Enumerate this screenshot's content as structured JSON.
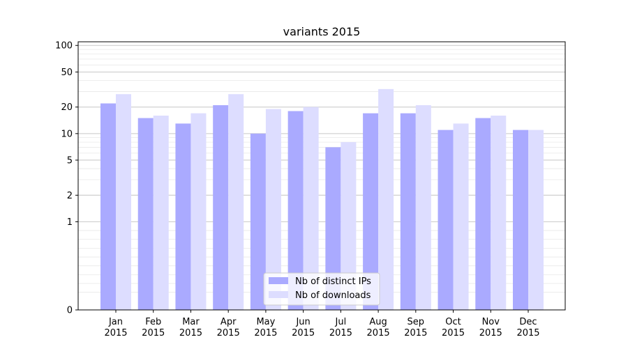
{
  "chart_data": {
    "type": "bar",
    "title": "variants 2015",
    "xlabel": "",
    "ylabel": "",
    "yscale": "symlog",
    "ylim": [
      0,
      110
    ],
    "yticks": [
      0,
      1,
      2,
      5,
      10,
      20,
      50,
      100
    ],
    "categories": [
      "Jan\n2015",
      "Feb\n2015",
      "Mar\n2015",
      "Apr\n2015",
      "May\n2015",
      "Jun\n2015",
      "Jul\n2015",
      "Aug\n2015",
      "Sep\n2015",
      "Oct\n2015",
      "Nov\n2015",
      "Dec\n2015"
    ],
    "category_lines": [
      [
        "Jan",
        "2015"
      ],
      [
        "Feb",
        "2015"
      ],
      [
        "Mar",
        "2015"
      ],
      [
        "Apr",
        "2015"
      ],
      [
        "May",
        "2015"
      ],
      [
        "Jun",
        "2015"
      ],
      [
        "Jul",
        "2015"
      ],
      [
        "Aug",
        "2015"
      ],
      [
        "Sep",
        "2015"
      ],
      [
        "Oct",
        "2015"
      ],
      [
        "Nov",
        "2015"
      ],
      [
        "Dec",
        "2015"
      ]
    ],
    "series": [
      {
        "name": "Nb of distinct IPs",
        "color": "#aaaaff",
        "values": [
          22,
          15,
          13,
          21,
          10,
          18,
          7,
          17,
          17,
          11,
          15,
          11
        ]
      },
      {
        "name": "Nb of downloads",
        "color": "#ddddff",
        "values": [
          28,
          16,
          17,
          28,
          19,
          20,
          8,
          32,
          21,
          13,
          16,
          11
        ]
      }
    ],
    "grid": true,
    "legend_position": "bottom-center"
  }
}
